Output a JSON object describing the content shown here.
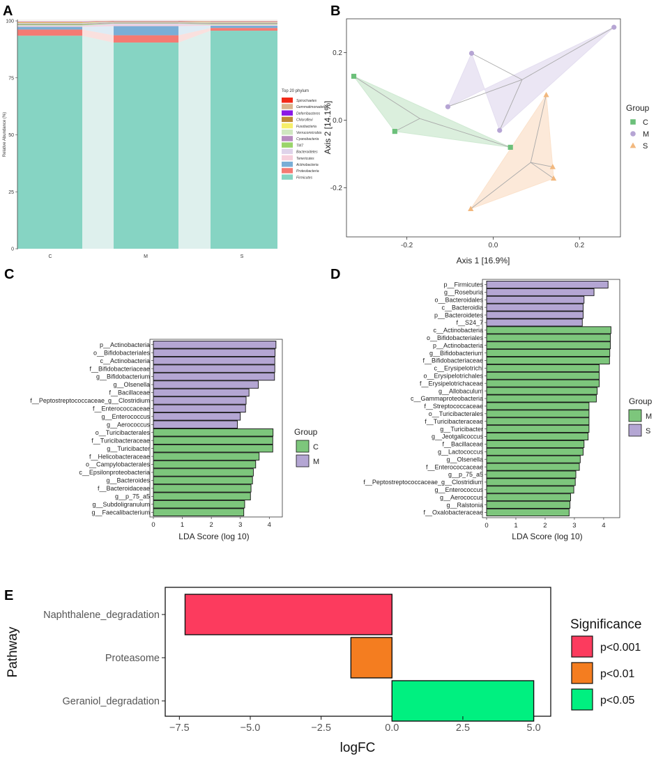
{
  "chart_data": [
    {
      "panel": "A",
      "type": "bar",
      "stacked": true,
      "categories": [
        "C",
        "M",
        "S"
      ],
      "xlabel": "",
      "ylabel": "Relative Abundance (%)",
      "ylim": [
        0,
        100
      ],
      "yticks": [
        0,
        25,
        50,
        75,
        100
      ],
      "legend_title": "Top 20 phylum",
      "legend_position": "right",
      "series": [
        {
          "name": "Firmicutes",
          "color": "#86d4c3",
          "values": [
            93.5,
            90.5,
            95.7
          ]
        },
        {
          "name": "Proteobacteria",
          "color": "#f47a73",
          "values": [
            2.7,
            3.2,
            1.2
          ]
        },
        {
          "name": "Actinobacteria",
          "color": "#7aaed6",
          "values": [
            1.2,
            4.0,
            1.0
          ]
        },
        {
          "name": "Tenericutes",
          "color": "#f6d0dc",
          "values": [
            0.4,
            0.6,
            0.3
          ]
        },
        {
          "name": "Bacteroidetes",
          "color": "#dfd3ea",
          "values": [
            0.3,
            0.5,
            0.3
          ]
        },
        {
          "name": "TM7",
          "color": "#9ad46b",
          "values": [
            0.4,
            0.2,
            0.3
          ]
        },
        {
          "name": "Cyanobacteria",
          "color": "#b88bc0",
          "values": [
            0.3,
            0.3,
            0.3
          ]
        },
        {
          "name": "Verrucomicrobia",
          "color": "#cfe7c0",
          "values": [
            0.3,
            0.2,
            0.2
          ]
        },
        {
          "name": "Fusobacteria",
          "color": "#f6ef6a",
          "values": [
            0.2,
            0.1,
            0.2
          ]
        },
        {
          "name": "Chloroflexi",
          "color": "#c08a35",
          "values": [
            0.1,
            0.1,
            0.1
          ]
        },
        {
          "name": "Deferribacteres",
          "color": "#8a17e6",
          "values": [
            0.1,
            0.1,
            0.1
          ]
        },
        {
          "name": "Gemmatimonadetes",
          "color": "#d9b48c",
          "values": [
            0.1,
            0.1,
            0.1
          ]
        },
        {
          "name": "Spirochaetes",
          "color": "#f22a18",
          "values": [
            0.1,
            0.1,
            0.1
          ]
        },
        {
          "name": "Others",
          "color": "#f3f1ee",
          "values": [
            0.3,
            0.0,
            0.1
          ]
        }
      ]
    },
    {
      "panel": "B",
      "type": "scatter",
      "xlabel": "Axis 1 [16.9%]",
      "ylabel": "Axis 2 [14.1%]",
      "xlim": [
        -0.34,
        0.295
      ],
      "ylim": [
        -0.345,
        0.3
      ],
      "xticks": [
        -0.2,
        0.0,
        0.2
      ],
      "yticks": [
        -0.2,
        0.0,
        0.2
      ],
      "xtick_labels": [
        "-0.2",
        "0.0",
        "0.2"
      ],
      "ytick_labels": [
        "-0.2",
        "0.0",
        "0.2"
      ],
      "legend_title": "Group",
      "legend_position": "right",
      "series": [
        {
          "name": "C",
          "color": "#6cc07a",
          "fill": "#cfe9d2",
          "marker": "square",
          "points": [
            [
              -0.323,
              0.13
            ],
            [
              -0.228,
              -0.033
            ],
            [
              0.04,
              -0.08
            ]
          ],
          "centroid": [
            -0.17,
            0.005
          ]
        },
        {
          "name": "M",
          "color": "#b6a5d4",
          "fill": "#e4def0",
          "marker": "circle",
          "points": [
            [
              -0.05,
              0.198
            ],
            [
              -0.105,
              0.04
            ],
            [
              0.28,
              0.275
            ],
            [
              0.015,
              -0.03
            ]
          ],
          "centroid": [
            0.067,
            0.12
          ]
        },
        {
          "name": "S",
          "color": "#f2b87e",
          "fill": "#fbe2cc",
          "marker": "triangle",
          "points": [
            [
              0.123,
              0.075
            ],
            [
              0.138,
              -0.138
            ],
            [
              0.14,
              -0.172
            ],
            [
              -0.052,
              -0.262
            ]
          ],
          "centroid": [
            0.087,
            -0.125
          ]
        }
      ]
    },
    {
      "panel": "C",
      "type": "bar",
      "orientation": "horizontal",
      "xlabel": "LDA Score (log 10)",
      "xlim": [
        0,
        4.45
      ],
      "xticks": [
        0,
        1,
        2,
        3,
        4
      ],
      "legend_title": "Group",
      "legend_position": "right",
      "legend": [
        {
          "name": "C",
          "color": "#7dc67c"
        },
        {
          "name": "M",
          "color": "#b4a6d3"
        }
      ],
      "categories": [
        "p__Actinobacteria",
        "o__Bifidobacteriales",
        "c__Actinobacteria",
        "f__Bifidobacteriaceae",
        "g__Bifidobacterium",
        "g__Olsenella",
        "f__Bacillaceae",
        "f__Peptostreptococcaceae_g__Clostridium",
        "f__Enterococcaceae",
        "g__Enterococcus",
        "g__Aerococcus",
        "o__Turicibacterales",
        "f__Turicibacteraceae",
        "g__Turicibacter",
        "f__Helicobacteraceae",
        "o__Campylobacterales",
        "c__Epsilonproteobacteria",
        "g__Bacteroides",
        "f__Bacteroidaceae",
        "g__p_75_a5",
        "g__Subdoligranulum",
        "g__Faecalibacterium"
      ],
      "values": [
        4.23,
        4.2,
        4.19,
        4.19,
        4.18,
        3.62,
        3.3,
        3.2,
        3.18,
        3.0,
        2.9,
        4.13,
        4.12,
        4.12,
        3.65,
        3.53,
        3.45,
        3.42,
        3.37,
        3.35,
        3.15,
        3.12
      ],
      "groups": [
        "M",
        "M",
        "M",
        "M",
        "M",
        "M",
        "M",
        "M",
        "M",
        "M",
        "M",
        "C",
        "C",
        "C",
        "C",
        "C",
        "C",
        "C",
        "C",
        "C",
        "C",
        "C"
      ]
    },
    {
      "panel": "D",
      "type": "bar",
      "orientation": "horizontal",
      "xlabel": "LDA Score (log 10)",
      "xlim": [
        0,
        4.55
      ],
      "xticks": [
        0,
        1,
        2,
        3,
        4
      ],
      "legend_title": "Group",
      "legend_position": "right",
      "legend": [
        {
          "name": "M",
          "color": "#7dc67c"
        },
        {
          "name": "S",
          "color": "#b4a6d3"
        }
      ],
      "categories": [
        "p__Firmicutes",
        "g__Roseburia",
        "o__Bacteroidales",
        "c__Bacteroidia",
        "p__Bacteroidetes",
        "f__S24_7",
        "c__Actinobacteria",
        "o__Bifidobacteriales",
        "p__Actinobacteria",
        "g__Bifidobacterium",
        "f__Bifidobacteriaceae",
        "c__Erysipelotrichi",
        "o__Erysipelotrichales",
        "f__Erysipelotrichaceae",
        "g__Allobaculum",
        "c__Gammaproteobacteria",
        "f__Streptococcaceae",
        "o__Turicibacterales",
        "f__Turicibacteraceae",
        "g__Turicibacter",
        "g__Jeotgalicoccus",
        "f__Bacillaceae",
        "g__Lactococcus",
        "g__Olsenella",
        "f__Enterococcaceae",
        "g__p_75_a5",
        "f__Peptostreptococcaceae_g__Clostridium",
        "g__Enterococcus",
        "g__Aerococcus",
        "g__Ralstonia",
        "f__Oxalobacteraceae"
      ],
      "values": [
        4.15,
        3.67,
        3.33,
        3.3,
        3.3,
        3.27,
        4.25,
        4.23,
        4.23,
        4.21,
        4.2,
        3.85,
        3.85,
        3.85,
        3.78,
        3.75,
        3.5,
        3.5,
        3.5,
        3.5,
        3.47,
        3.33,
        3.3,
        3.2,
        3.17,
        3.05,
        3.03,
        2.98,
        2.87,
        2.85,
        2.82
      ],
      "groups": [
        "S",
        "S",
        "S",
        "S",
        "S",
        "S",
        "M",
        "M",
        "M",
        "M",
        "M",
        "M",
        "M",
        "M",
        "M",
        "M",
        "M",
        "M",
        "M",
        "M",
        "M",
        "M",
        "M",
        "M",
        "M",
        "M",
        "M",
        "M",
        "M",
        "M",
        "M"
      ]
    },
    {
      "panel": "E",
      "type": "bar",
      "orientation": "horizontal",
      "xlabel": "logFC",
      "ylabel": "Pathway",
      "xlim": [
        -8.0,
        5.6
      ],
      "xticks": [
        -7.5,
        -5.0,
        -2.5,
        0.0,
        2.5,
        5.0
      ],
      "xtick_labels": [
        "−7.5",
        "−5.0",
        "−2.5",
        "0.0",
        "2.5",
        "5.0"
      ],
      "legend_title": "Significance",
      "legend_position": "right",
      "categories": [
        "Naphthalene_degradation",
        "Proteasome",
        "Geraniol_degradation"
      ],
      "values": [
        -7.3,
        -1.45,
        5.0
      ],
      "significance": [
        "p<0.001",
        "p<0.01",
        "p<0.05"
      ],
      "legend": [
        {
          "name": "p<0.001",
          "color": "#fc3b5e"
        },
        {
          "name": "p<0.01",
          "color": "#f47d20"
        },
        {
          "name": "p<0.05",
          "color": "#00f080"
        }
      ]
    }
  ]
}
